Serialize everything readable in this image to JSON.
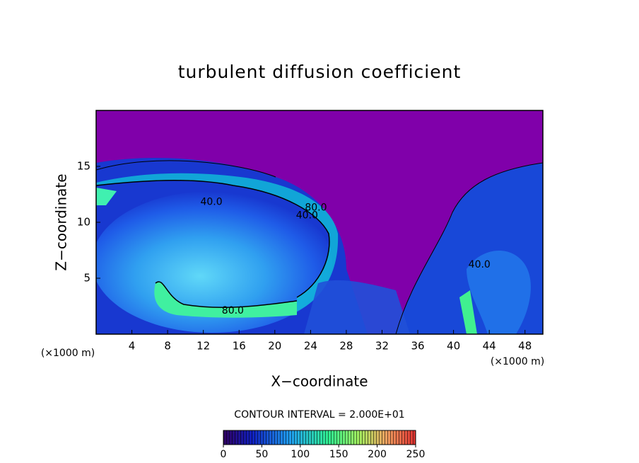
{
  "chart_data": {
    "type": "contour",
    "title": "turbulent diffusion coefficient",
    "xlabel": "X−coordinate",
    "ylabel": "Z−coordinate",
    "xunit": "(×1000 m)",
    "yunit": "(×1000 m)",
    "xlim": [
      0,
      50
    ],
    "xticks": [
      4,
      8,
      12,
      16,
      20,
      24,
      28,
      32,
      36,
      40,
      44,
      48
    ],
    "ylim": [
      0,
      20
    ],
    "yticks": [
      5,
      10,
      15
    ],
    "contour_interval_label": "CONTOUR INTERVAL = 2.000E+01",
    "clim": [
      0,
      250
    ],
    "cticks": [
      0,
      50,
      100,
      150,
      200,
      250
    ],
    "contour_labels": [
      {
        "text": "40.0",
        "x": 12.9,
        "y": 11.8
      },
      {
        "text": "40.0",
        "x": 23.6,
        "y": 10.6
      },
      {
        "text": "80.0",
        "x": 24.6,
        "y": 11.3
      },
      {
        "text": "80.0",
        "x": 15.3,
        "y": 2.1
      },
      {
        "text": "40.0",
        "x": 42.9,
        "y": 6.2
      }
    ]
  }
}
